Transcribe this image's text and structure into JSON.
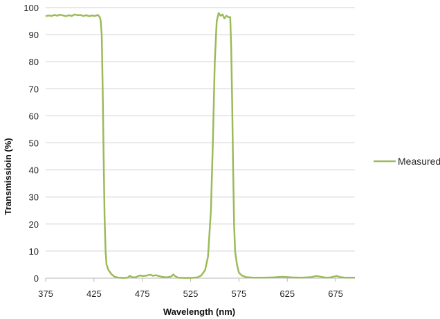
{
  "chart_data": {
    "type": "line",
    "title": "",
    "xlabel": "Wavelength (nm)",
    "ylabel": "Transmissioin (%)",
    "xlim": [
      375,
      695
    ],
    "ylim": [
      0,
      100
    ],
    "x_ticks": [
      375,
      425,
      475,
      525,
      575,
      625,
      675
    ],
    "y_ticks": [
      0,
      10,
      20,
      30,
      40,
      50,
      60,
      70,
      80,
      90,
      100
    ],
    "grid": "horizontal",
    "legend_position": "right",
    "series": [
      {
        "name": "Measured",
        "color": "#9bbb59",
        "points": [
          [
            375,
            96.8
          ],
          [
            378,
            97.1
          ],
          [
            381,
            96.9
          ],
          [
            384,
            97.3
          ],
          [
            387,
            97.0
          ],
          [
            390,
            97.4
          ],
          [
            393,
            97.1
          ],
          [
            396,
            96.8
          ],
          [
            399,
            97.2
          ],
          [
            402,
            96.9
          ],
          [
            405,
            97.5
          ],
          [
            408,
            97.2
          ],
          [
            411,
            97.3
          ],
          [
            414,
            96.9
          ],
          [
            417,
            97.2
          ],
          [
            420,
            96.8
          ],
          [
            423,
            97.1
          ],
          [
            426,
            96.9
          ],
          [
            429,
            97.3
          ],
          [
            431,
            96.5
          ],
          [
            432,
            95.0
          ],
          [
            433,
            90.0
          ],
          [
            434,
            70.0
          ],
          [
            435,
            45.0
          ],
          [
            436,
            22.0
          ],
          [
            437,
            10.0
          ],
          [
            438,
            5.0
          ],
          [
            440,
            3.0
          ],
          [
            443,
            1.5
          ],
          [
            446,
            0.6
          ],
          [
            450,
            0.2
          ],
          [
            455,
            0.1
          ],
          [
            460,
            0.2
          ],
          [
            462,
            0.9
          ],
          [
            464,
            0.4
          ],
          [
            468,
            0.3
          ],
          [
            472,
            1.0
          ],
          [
            476,
            0.8
          ],
          [
            480,
            1.0
          ],
          [
            483,
            1.3
          ],
          [
            486,
            0.9
          ],
          [
            489,
            1.1
          ],
          [
            492,
            0.8
          ],
          [
            495,
            0.5
          ],
          [
            500,
            0.3
          ],
          [
            505,
            0.6
          ],
          [
            507,
            1.4
          ],
          [
            509,
            0.7
          ],
          [
            512,
            0.2
          ],
          [
            518,
            0.1
          ],
          [
            525,
            0.1
          ],
          [
            532,
            0.3
          ],
          [
            536,
            1.0
          ],
          [
            540,
            3.0
          ],
          [
            543,
            8.0
          ],
          [
            546,
            25.0
          ],
          [
            548,
            50.0
          ],
          [
            550,
            80.0
          ],
          [
            552,
            95.0
          ],
          [
            554,
            98.0
          ],
          [
            556,
            97.0
          ],
          [
            558,
            97.5
          ],
          [
            560,
            96.0
          ],
          [
            562,
            97.0
          ],
          [
            564,
            96.5
          ],
          [
            566,
            96.5
          ],
          [
            567,
            85.0
          ],
          [
            568,
            65.0
          ],
          [
            569,
            40.0
          ],
          [
            570,
            20.0
          ],
          [
            571,
            10.0
          ],
          [
            573,
            5.0
          ],
          [
            575,
            2.0
          ],
          [
            578,
            1.0
          ],
          [
            582,
            0.4
          ],
          [
            590,
            0.2
          ],
          [
            600,
            0.2
          ],
          [
            610,
            0.3
          ],
          [
            620,
            0.5
          ],
          [
            630,
            0.3
          ],
          [
            640,
            0.2
          ],
          [
            650,
            0.4
          ],
          [
            655,
            0.8
          ],
          [
            660,
            0.5
          ],
          [
            665,
            0.2
          ],
          [
            670,
            0.3
          ],
          [
            676,
            0.8
          ],
          [
            680,
            0.4
          ],
          [
            685,
            0.2
          ],
          [
            695,
            0.2
          ]
        ]
      }
    ]
  }
}
